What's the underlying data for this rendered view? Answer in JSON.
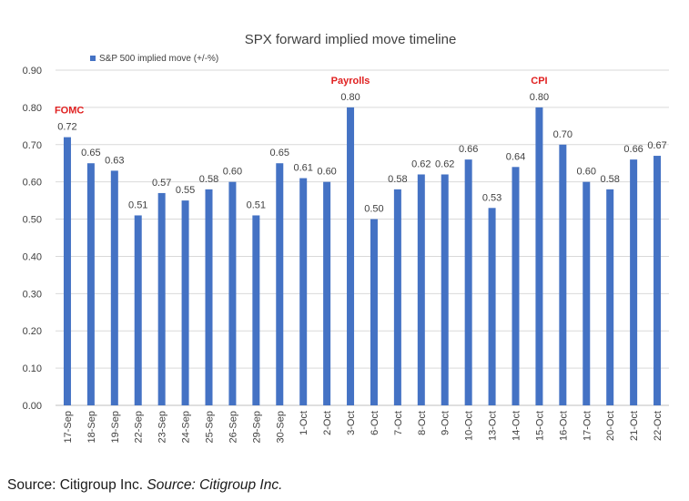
{
  "chart_data": {
    "type": "bar",
    "title": "SPX forward implied move timeline",
    "xlabel": "",
    "ylabel": "",
    "ylim": [
      0,
      0.9
    ],
    "yticks": [
      "0.00",
      "0.10",
      "0.20",
      "0.30",
      "0.40",
      "0.50",
      "0.60",
      "0.70",
      "0.80",
      "0.90"
    ],
    "grid": true,
    "legend_position": "top-left",
    "bar_color": "#4472c4",
    "annotation_color": "#e02020",
    "categories": [
      "17-Sep",
      "18-Sep",
      "19-Sep",
      "22-Sep",
      "23-Sep",
      "24-Sep",
      "25-Sep",
      "26-Sep",
      "29-Sep",
      "30-Sep",
      "1-Oct",
      "2-Oct",
      "3-Oct",
      "6-Oct",
      "7-Oct",
      "8-Oct",
      "9-Oct",
      "10-Oct",
      "13-Oct",
      "14-Oct",
      "15-Oct",
      "16-Oct",
      "17-Oct",
      "20-Oct",
      "21-Oct",
      "22-Oct"
    ],
    "series": [
      {
        "name": "S&P 500 implied move (+/-%)",
        "values": [
          0.72,
          0.65,
          0.63,
          0.51,
          0.57,
          0.55,
          0.58,
          0.6,
          0.51,
          0.65,
          0.61,
          0.6,
          0.8,
          0.5,
          0.58,
          0.62,
          0.62,
          0.66,
          0.53,
          0.64,
          0.8,
          0.7,
          0.6,
          0.58,
          0.66,
          0.67
        ],
        "labels": [
          "0.72",
          "0.65",
          "0.63",
          "0.51",
          "0.57",
          "0.55",
          "0.58",
          "0.60",
          "0.51",
          "0.65",
          "0.61",
          "0.60",
          "0.80",
          "0.50",
          "0.58",
          "0.62",
          "0.62",
          "0.66",
          "0.53",
          "0.64",
          "0.80",
          "0.70",
          "0.60",
          "0.58",
          "0.66",
          "0.67"
        ]
      }
    ],
    "annotations": [
      {
        "category": "17-Sep",
        "text": "FOMC"
      },
      {
        "category": "3-Oct",
        "text": "Payrolls"
      },
      {
        "category": "15-Oct",
        "text": "CPI"
      }
    ]
  },
  "source": {
    "text": "Source: Citigroup Inc.",
    "italic_text": "Source: Citigroup Inc."
  }
}
